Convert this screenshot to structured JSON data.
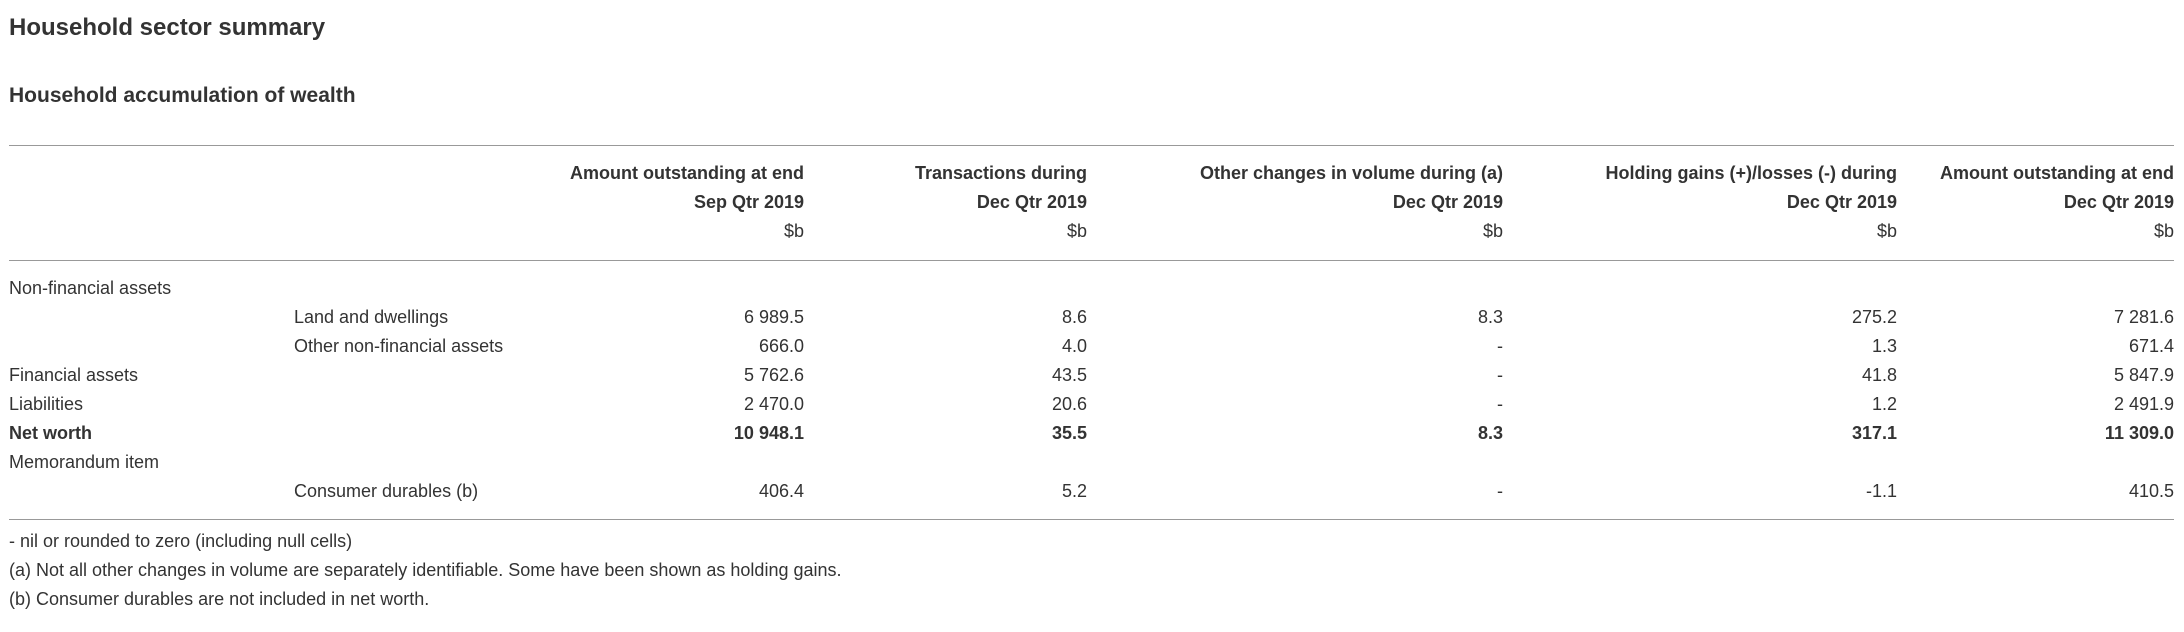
{
  "page_title": "Household sector summary",
  "section_title": "Household accumulation of wealth",
  "table": {
    "columns": [
      {
        "line1": "Amount outstanding at end",
        "line2": "Sep Qtr 2019",
        "unit": "$b"
      },
      {
        "line1": "Transactions during",
        "line2": "Dec Qtr 2019",
        "unit": "$b"
      },
      {
        "line1": "Other changes in volume during (a)",
        "line2": "Dec Qtr 2019",
        "unit": "$b"
      },
      {
        "line1": "Holding gains (+)/losses (-) during",
        "line2": "Dec Qtr 2019",
        "unit": "$b"
      },
      {
        "line1": "Amount outstanding at end",
        "line2": "Dec Qtr 2019",
        "unit": "$b"
      }
    ],
    "rows": [
      {
        "label": "Non-financial assets",
        "indent": false,
        "bold": false,
        "values": [
          "",
          "",
          "",
          "",
          ""
        ]
      },
      {
        "label": "Land and dwellings",
        "indent": true,
        "bold": false,
        "values": [
          "6 989.5",
          "8.6",
          "8.3",
          "275.2",
          "7 281.6"
        ]
      },
      {
        "label": "Other non-financial assets",
        "indent": true,
        "bold": false,
        "values": [
          "666.0",
          "4.0",
          "-",
          "1.3",
          "671.4"
        ]
      },
      {
        "label": "Financial assets",
        "indent": false,
        "bold": false,
        "values": [
          "5 762.6",
          "43.5",
          "-",
          "41.8",
          "5 847.9"
        ]
      },
      {
        "label": "Liabilities",
        "indent": false,
        "bold": false,
        "values": [
          "2 470.0",
          "20.6",
          "-",
          "1.2",
          "2 491.9"
        ]
      },
      {
        "label": "Net worth",
        "indent": false,
        "bold": true,
        "values": [
          "10 948.1",
          "35.5",
          "8.3",
          "317.1",
          "11 309.0"
        ]
      },
      {
        "label": "Memorandum item",
        "indent": false,
        "bold": false,
        "values": [
          "",
          "",
          "",
          "",
          ""
        ]
      },
      {
        "label": "Consumer durables (b)",
        "indent": true,
        "bold": false,
        "values": [
          "406.4",
          "5.2",
          "-",
          "-1.1",
          "410.5"
        ]
      }
    ]
  },
  "footnotes": [
    "- nil or rounded to zero (including null cells)",
    "(a) Not all other changes in volume are separately identifiable. Some have been shown as holding gains.",
    "(b) Consumer durables are not included in net worth."
  ]
}
